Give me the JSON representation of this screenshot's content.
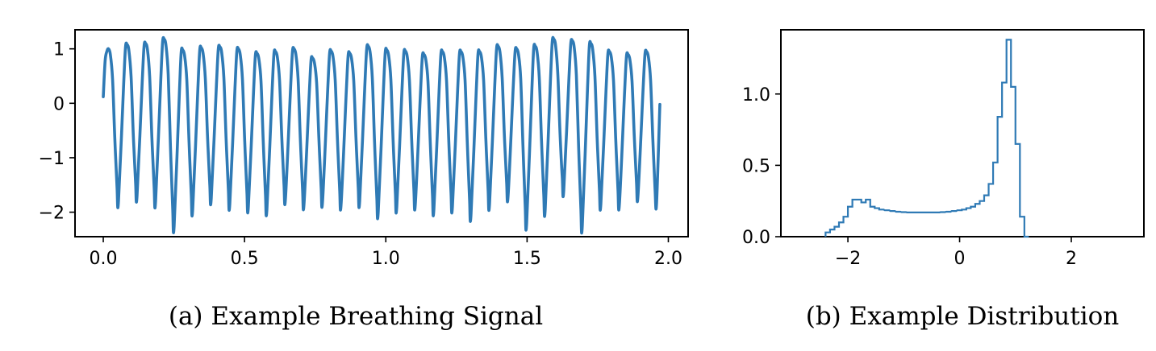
{
  "captions": {
    "a": "(a) Example Breathing Signal",
    "b": "(b) Example Distribution"
  },
  "colors": {
    "series": "#2f7ab5",
    "axis": "#000000"
  },
  "chart_data": [
    {
      "type": "line",
      "title": "",
      "xlabel": "",
      "ylabel": "",
      "xlim": [
        -0.1,
        2.07
      ],
      "ylim": [
        -2.45,
        1.35
      ],
      "xticks": [
        0.0,
        0.5,
        1.0,
        1.5,
        2.0
      ],
      "xtick_labels": [
        "0.0",
        "0.5",
        "1.0",
        "1.5",
        "2.0"
      ],
      "yticks": [
        -2,
        -1,
        0,
        1
      ],
      "ytick_labels": [
        "−2",
        "−1",
        "0",
        "1"
      ],
      "grid": false,
      "series": [
        {
          "cycles": [
            {
              "peak": 1.0,
              "trough": -1.8
            },
            {
              "peak": 1.08,
              "trough": -1.7
            },
            {
              "peak": 1.1,
              "trough": -1.8
            },
            {
              "peak": 1.18,
              "trough": -2.25
            },
            {
              "peak": 0.98,
              "trough": -1.95
            },
            {
              "peak": 1.02,
              "trough": -1.75
            },
            {
              "peak": 1.04,
              "trough": -1.85
            },
            {
              "peak": 1.0,
              "trough": -1.9
            },
            {
              "peak": 0.92,
              "trough": -1.95
            },
            {
              "peak": 0.95,
              "trough": -1.75
            },
            {
              "peak": 1.0,
              "trough": -1.85
            },
            {
              "peak": 0.83,
              "trough": -1.8
            },
            {
              "peak": 0.96,
              "trough": -1.85
            },
            {
              "peak": 0.92,
              "trough": -1.8
            },
            {
              "peak": 1.05,
              "trough": -2.0
            },
            {
              "peak": 0.98,
              "trough": -1.9
            },
            {
              "peak": 0.96,
              "trough": -1.85
            },
            {
              "peak": 0.9,
              "trough": -1.95
            },
            {
              "peak": 0.95,
              "trough": -1.9
            },
            {
              "peak": 0.95,
              "trough": -2.05
            },
            {
              "peak": 0.95,
              "trough": -1.85
            },
            {
              "peak": 1.05,
              "trough": -1.7
            },
            {
              "peak": 1.0,
              "trough": -2.2
            },
            {
              "peak": 1.05,
              "trough": -1.95
            },
            {
              "peak": 1.18,
              "trough": -1.6
            },
            {
              "peak": 1.15,
              "trough": -2.25
            },
            {
              "peak": 1.1,
              "trough": -1.85
            },
            {
              "peak": 0.95,
              "trough": -1.85
            },
            {
              "peak": 0.9,
              "trough": -1.7
            },
            {
              "peak": 0.95,
              "trough": -1.85
            }
          ],
          "x_start": 0.0,
          "x_end": 1.97,
          "y_start": 0.12,
          "y_end": -0.02
        }
      ]
    },
    {
      "type": "histogram",
      "title": "",
      "xlabel": "",
      "ylabel": "",
      "xlim": [
        -3.2,
        3.3
      ],
      "ylim": [
        0.0,
        1.45
      ],
      "xticks": [
        -2,
        0,
        2
      ],
      "xtick_labels": [
        "−2",
        "0",
        "2"
      ],
      "yticks": [
        0.0,
        0.5,
        1.0
      ],
      "ytick_labels": [
        "0.0",
        "0.5",
        "1.0"
      ],
      "grid": false,
      "bins": [
        {
          "x": -2.36,
          "y": 0.03
        },
        {
          "x": -2.28,
          "y": 0.05
        },
        {
          "x": -2.2,
          "y": 0.07
        },
        {
          "x": -2.12,
          "y": 0.1
        },
        {
          "x": -2.04,
          "y": 0.14
        },
        {
          "x": -1.96,
          "y": 0.21
        },
        {
          "x": -1.88,
          "y": 0.26
        },
        {
          "x": -1.8,
          "y": 0.26
        },
        {
          "x": -1.72,
          "y": 0.24
        },
        {
          "x": -1.64,
          "y": 0.26
        },
        {
          "x": -1.56,
          "y": 0.21
        },
        {
          "x": -1.48,
          "y": 0.2
        },
        {
          "x": -1.4,
          "y": 0.19
        },
        {
          "x": -1.3,
          "y": 0.185
        },
        {
          "x": -1.2,
          "y": 0.18
        },
        {
          "x": -1.1,
          "y": 0.175
        },
        {
          "x": -1.0,
          "y": 0.172
        },
        {
          "x": -0.9,
          "y": 0.17
        },
        {
          "x": -0.8,
          "y": 0.17
        },
        {
          "x": -0.7,
          "y": 0.17
        },
        {
          "x": -0.6,
          "y": 0.17
        },
        {
          "x": -0.5,
          "y": 0.17
        },
        {
          "x": -0.4,
          "y": 0.17
        },
        {
          "x": -0.3,
          "y": 0.172
        },
        {
          "x": -0.2,
          "y": 0.175
        },
        {
          "x": -0.1,
          "y": 0.18
        },
        {
          "x": 0.0,
          "y": 0.185
        },
        {
          "x": 0.08,
          "y": 0.19
        },
        {
          "x": 0.16,
          "y": 0.2
        },
        {
          "x": 0.24,
          "y": 0.21
        },
        {
          "x": 0.32,
          "y": 0.23
        },
        {
          "x": 0.4,
          "y": 0.25
        },
        {
          "x": 0.48,
          "y": 0.29
        },
        {
          "x": 0.56,
          "y": 0.37
        },
        {
          "x": 0.64,
          "y": 0.52
        },
        {
          "x": 0.72,
          "y": 0.84
        },
        {
          "x": 0.8,
          "y": 1.08
        },
        {
          "x": 0.88,
          "y": 1.38
        },
        {
          "x": 0.96,
          "y": 1.05
        },
        {
          "x": 1.04,
          "y": 0.65
        },
        {
          "x": 1.12,
          "y": 0.14
        },
        {
          "x": 1.2,
          "y": 0.0
        }
      ],
      "bin_width": 0.08
    }
  ]
}
